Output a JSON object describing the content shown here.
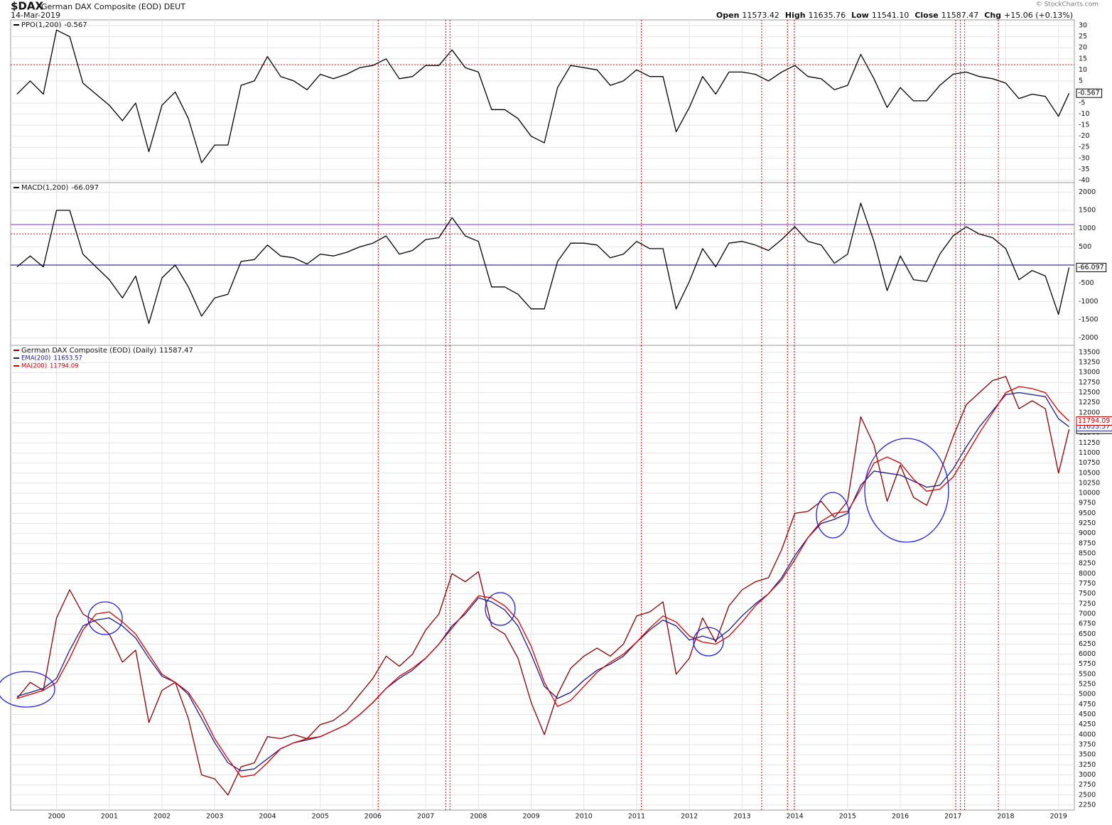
{
  "header": {
    "symbol": "$DAX",
    "name": "German DAX Composite (EOD) DEUT",
    "date": "14-Mar-2019",
    "quote": [
      {
        "label": "Open",
        "value": "11573.42"
      },
      {
        "label": "High",
        "value": "11635.76"
      },
      {
        "label": "Low",
        "value": "11541.10"
      },
      {
        "label": "Close",
        "value": "11587.47"
      },
      {
        "label": "Chg",
        "value": "+15.06 (+0.13%)"
      }
    ],
    "credit": "© StockCharts.com"
  },
  "vertical_markers": [
    2006.1,
    2007.38,
    2007.46,
    2011.09,
    2013.37,
    2013.86,
    2013.99,
    2017.05,
    2017.14,
    2017.22,
    2017.86
  ],
  "chart_data": [
    {
      "type": "line",
      "legend": "top-left",
      "grid": true,
      "x": [
        1999.25,
        1999.5,
        1999.75,
        2000,
        2000.25,
        2000.5,
        2000.75,
        2001,
        2001.25,
        2001.5,
        2001.75,
        2002,
        2002.25,
        2002.5,
        2002.75,
        2003,
        2003.25,
        2003.5,
        2003.75,
        2004,
        2004.25,
        2004.5,
        2004.75,
        2005,
        2005.25,
        2005.5,
        2005.75,
        2006,
        2006.25,
        2006.5,
        2006.75,
        2007,
        2007.25,
        2007.5,
        2007.75,
        2008,
        2008.25,
        2008.5,
        2008.75,
        2009,
        2009.25,
        2009.5,
        2009.75,
        2010,
        2010.25,
        2010.5,
        2010.75,
        2011,
        2011.25,
        2011.5,
        2011.75,
        2012,
        2012.25,
        2012.5,
        2012.75,
        2013,
        2013.25,
        2013.5,
        2013.75,
        2014,
        2014.25,
        2014.5,
        2014.75,
        2015,
        2015.25,
        2015.5,
        2015.75,
        2016,
        2016.25,
        2016.5,
        2016.75,
        2017,
        2017.25,
        2017.5,
        2017.75,
        2018,
        2018.25,
        2018.5,
        2018.75,
        2019,
        2019.2
      ],
      "xlim": [
        1999.13,
        2019.3
      ],
      "ylim": [
        -41,
        32.6
      ],
      "yticks": [
        30,
        25,
        20,
        15,
        10,
        5,
        -5,
        -10,
        -15,
        -20,
        -25,
        -30,
        -35,
        -40
      ],
      "reference_lines": [
        {
          "value": 12.3,
          "color": "#e00000",
          "style": "dotted"
        }
      ],
      "series": [
        {
          "name": "PPO(1,200)",
          "color": "#000000",
          "values": [
            -1,
            5,
            -1,
            28,
            25,
            4,
            -1,
            -6,
            -13,
            -5,
            -27,
            -6,
            0,
            -12,
            -32,
            -24,
            -24,
            3,
            5,
            16,
            7,
            5,
            1,
            8,
            6,
            8,
            11,
            12,
            15,
            6,
            7,
            12,
            12,
            19,
            11,
            9,
            -8,
            -8,
            -12,
            -20,
            -23,
            2,
            12,
            11,
            10,
            3,
            5,
            10,
            7,
            7,
            -18,
            -7,
            7,
            -1,
            9,
            9,
            8,
            5,
            9,
            12,
            7,
            6,
            1,
            3,
            17,
            6,
            -7,
            2,
            -4,
            -4,
            3,
            8,
            9,
            7,
            6,
            4,
            -3,
            -1,
            -2,
            -11,
            -0.567
          ]
        }
      ]
    },
    {
      "type": "line",
      "legend": "top-left",
      "grid": true,
      "x": [
        1999.25,
        1999.5,
        1999.75,
        2000,
        2000.25,
        2000.5,
        2000.75,
        2001,
        2001.25,
        2001.5,
        2001.75,
        2002,
        2002.25,
        2002.5,
        2002.75,
        2003,
        2003.25,
        2003.5,
        2003.75,
        2004,
        2004.25,
        2004.5,
        2004.75,
        2005,
        2005.25,
        2005.5,
        2005.75,
        2006,
        2006.25,
        2006.5,
        2006.75,
        2007,
        2007.25,
        2007.5,
        2007.75,
        2008,
        2008.25,
        2008.5,
        2008.75,
        2009,
        2009.25,
        2009.5,
        2009.75,
        2010,
        2010.25,
        2010.5,
        2010.75,
        2011,
        2011.25,
        2011.5,
        2011.75,
        2012,
        2012.25,
        2012.5,
        2012.75,
        2013,
        2013.25,
        2013.5,
        2013.75,
        2014,
        2014.25,
        2014.5,
        2014.75,
        2015,
        2015.25,
        2015.5,
        2015.75,
        2016,
        2016.25,
        2016.5,
        2016.75,
        2017,
        2017.25,
        2017.5,
        2017.75,
        2018,
        2018.25,
        2018.5,
        2018.75,
        2019,
        2019.2
      ],
      "xlim": [
        1999.13,
        2019.3
      ],
      "ylim": [
        -2200,
        2260
      ],
      "yticks": [
        2000,
        1500,
        1000,
        500,
        -500,
        -1000,
        -1500,
        -2000
      ],
      "reference_lines": [
        {
          "value": 1110,
          "color": "#8a2be2",
          "style": "solid"
        },
        {
          "value": 856,
          "color": "#e00000",
          "style": "dotted"
        },
        {
          "value": 0,
          "color": "#000080",
          "style": "solid"
        }
      ],
      "series": [
        {
          "name": "MACD(1,200)",
          "color": "#000000",
          "values": [
            -50,
            250,
            -50,
            1500,
            1500,
            300,
            -50,
            -400,
            -900,
            -300,
            -1600,
            -350,
            0,
            -600,
            -1400,
            -900,
            -800,
            100,
            150,
            550,
            250,
            200,
            30,
            300,
            250,
            350,
            500,
            600,
            800,
            300,
            400,
            700,
            750,
            1300,
            800,
            650,
            -600,
            -600,
            -800,
            -1200,
            -1200,
            100,
            600,
            600,
            550,
            200,
            300,
            650,
            450,
            450,
            -1200,
            -450,
            450,
            -50,
            600,
            650,
            550,
            400,
            700,
            1050,
            650,
            550,
            50,
            300,
            1700,
            650,
            -700,
            250,
            -400,
            -450,
            300,
            800,
            1050,
            850,
            750,
            450,
            -400,
            -150,
            -300,
            -1350,
            -66.097
          ]
        }
      ]
    },
    {
      "type": "line",
      "legend": "top-left",
      "grid": true,
      "x": [
        1999.25,
        1999.5,
        1999.75,
        2000,
        2000.25,
        2000.5,
        2000.75,
        2001,
        2001.25,
        2001.5,
        2001.75,
        2002,
        2002.25,
        2002.5,
        2002.75,
        2003,
        2003.25,
        2003.5,
        2003.75,
        2004,
        2004.25,
        2004.5,
        2004.75,
        2005,
        2005.25,
        2005.5,
        2005.75,
        2006,
        2006.25,
        2006.5,
        2006.75,
        2007,
        2007.25,
        2007.5,
        2007.75,
        2008,
        2008.25,
        2008.5,
        2008.75,
        2009,
        2009.25,
        2009.5,
        2009.75,
        2010,
        2010.25,
        2010.5,
        2010.75,
        2011,
        2011.25,
        2011.5,
        2011.75,
        2012,
        2012.25,
        2012.5,
        2012.75,
        2013,
        2013.25,
        2013.5,
        2013.75,
        2014,
        2014.25,
        2014.5,
        2014.75,
        2015,
        2015.25,
        2015.5,
        2015.75,
        2016,
        2016.25,
        2016.5,
        2016.75,
        2017,
        2017.25,
        2017.5,
        2017.75,
        2018,
        2018.25,
        2018.5,
        2018.75,
        2019,
        2019.2
      ],
      "xlim": [
        1999.13,
        2019.3
      ],
      "ylim": [
        2125,
        13675
      ],
      "xticks": [
        2000,
        2001,
        2002,
        2003,
        2004,
        2005,
        2006,
        2007,
        2008,
        2009,
        2010,
        2011,
        2012,
        2013,
        2014,
        2015,
        2016,
        2017,
        2018,
        2019
      ],
      "yticks": [
        13500,
        13250,
        13000,
        12750,
        12500,
        12250,
        12000,
        11750,
        11500,
        11250,
        11000,
        10750,
        10500,
        10250,
        10000,
        9750,
        9500,
        9250,
        9000,
        8750,
        8500,
        8250,
        8000,
        7750,
        7500,
        7250,
        7000,
        6750,
        6500,
        6250,
        6000,
        5750,
        5500,
        5250,
        5000,
        4750,
        4500,
        4250,
        4000,
        3750,
        3500,
        3250,
        3000,
        2750,
        2500,
        2250
      ],
      "series": [
        {
          "name": "German DAX Composite (EOD) (Daily)",
          "color": "#8b0000",
          "values": [
            4900,
            5300,
            5100,
            6900,
            7600,
            7000,
            6800,
            6500,
            5800,
            6100,
            4300,
            5100,
            5300,
            4400,
            3000,
            2900,
            2500,
            3200,
            3300,
            3950,
            3900,
            4000,
            3900,
            4250,
            4350,
            4600,
            5000,
            5400,
            5950,
            5700,
            6000,
            6600,
            7000,
            8000,
            7800,
            8050,
            6700,
            6500,
            5900,
            4800,
            4000,
            5000,
            5650,
            5950,
            6150,
            5950,
            6250,
            6950,
            7050,
            7300,
            5500,
            5900,
            6900,
            6300,
            7200,
            7600,
            7800,
            7900,
            8600,
            9500,
            9550,
            9800,
            9400,
            9800,
            11900,
            11200,
            9800,
            10700,
            9900,
            9700,
            10500,
            11400,
            12200,
            12500,
            12800,
            12900,
            12100,
            12300,
            12100,
            10500,
            11587.47
          ]
        },
        {
          "name": "EMA(200)",
          "color": "#1a1a8c",
          "values": [
            4950,
            5050,
            5150,
            5400,
            6100,
            6700,
            6850,
            6900,
            6700,
            6400,
            5900,
            5450,
            5300,
            5000,
            4400,
            3800,
            3300,
            3100,
            3150,
            3400,
            3650,
            3800,
            3870,
            3950,
            4100,
            4250,
            4500,
            4800,
            5150,
            5400,
            5600,
            5900,
            6250,
            6700,
            7000,
            7400,
            7300,
            7100,
            6700,
            6000,
            5200,
            4900,
            5050,
            5350,
            5600,
            5750,
            5950,
            6300,
            6600,
            6850,
            6700,
            6350,
            6450,
            6350,
            6600,
            6950,
            7250,
            7500,
            7900,
            8450,
            8900,
            9250,
            9350,
            9500,
            10200,
            10550,
            10500,
            10450,
            10300,
            10150,
            10200,
            10600,
            11150,
            11650,
            12050,
            12450,
            12500,
            12450,
            12400,
            11850,
            11653.57
          ]
        },
        {
          "name": "MA(200)",
          "color": "#d40000",
          "values": [
            4900,
            5000,
            5100,
            5300,
            5900,
            6600,
            7000,
            7050,
            6800,
            6500,
            6000,
            5500,
            5300,
            5050,
            4550,
            3900,
            3400,
            2950,
            3000,
            3300,
            3650,
            3800,
            3900,
            3950,
            4100,
            4250,
            4500,
            4800,
            5150,
            5450,
            5650,
            5900,
            6250,
            6650,
            7050,
            7450,
            7400,
            7200,
            6850,
            6200,
            5300,
            4700,
            4850,
            5200,
            5550,
            5800,
            6000,
            6300,
            6650,
            6950,
            6800,
            6450,
            6300,
            6250,
            6450,
            6800,
            7200,
            7500,
            7850,
            8350,
            8900,
            9300,
            9500,
            9550,
            10100,
            10750,
            10900,
            10750,
            10350,
            10050,
            10100,
            10400,
            10950,
            11500,
            12000,
            12500,
            12650,
            12600,
            12500,
            12050,
            11794.09
          ]
        }
      ]
    }
  ]
}
